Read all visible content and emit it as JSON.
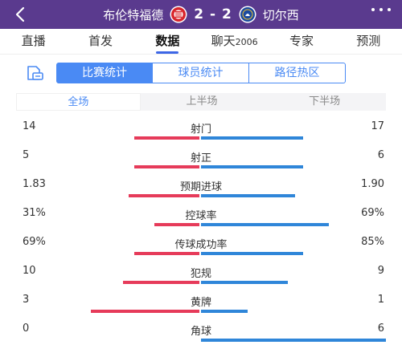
{
  "header": {
    "home_team": "布伦特福德",
    "score": "2 - 2",
    "away_team": "切尔西",
    "home_color": "#d8252c",
    "away_color": "#1b4aa0"
  },
  "nav_tabs": [
    {
      "label": "直播",
      "sup": ""
    },
    {
      "label": "首发",
      "sup": ""
    },
    {
      "label": "数据",
      "sup": "",
      "active": true
    },
    {
      "label": "聊天",
      "sup": "2006"
    },
    {
      "label": "专家",
      "sup": ""
    },
    {
      "label": "预测",
      "sup": ""
    }
  ],
  "segments": [
    "比赛统计",
    "球员统计",
    "路径热区"
  ],
  "periods": [
    "全场",
    "上半场",
    "下半场"
  ],
  "stats": [
    {
      "label": "射门",
      "home": "14",
      "away": "17",
      "home_share": 0.45,
      "away_share": 0.55
    },
    {
      "label": "射正",
      "home": "5",
      "away": "6",
      "home_share": 0.45,
      "away_share": 0.55
    },
    {
      "label": "预期进球",
      "home": "1.83",
      "away": "1.90",
      "home_share": 0.49,
      "away_share": 0.51
    },
    {
      "label": "控球率",
      "home": "31%",
      "away": "69%",
      "home_share": 0.31,
      "away_share": 0.69
    },
    {
      "label": "传球成功率",
      "home": "69%",
      "away": "85%",
      "home_share": 0.45,
      "away_share": 0.55
    },
    {
      "label": "犯规",
      "home": "10",
      "away": "9",
      "home_share": 0.53,
      "away_share": 0.47
    },
    {
      "label": "黄牌",
      "home": "3",
      "away": "1",
      "home_share": 0.75,
      "away_share": 0.25
    },
    {
      "label": "角球",
      "home": "0",
      "away": "6",
      "home_share": 0.0,
      "away_share": 1.0
    }
  ],
  "colors": {
    "home_bar": "#e63b5a",
    "away_bar": "#2f86d9",
    "accent": "#4a8af4",
    "header_bg": "#5a3a8e"
  }
}
